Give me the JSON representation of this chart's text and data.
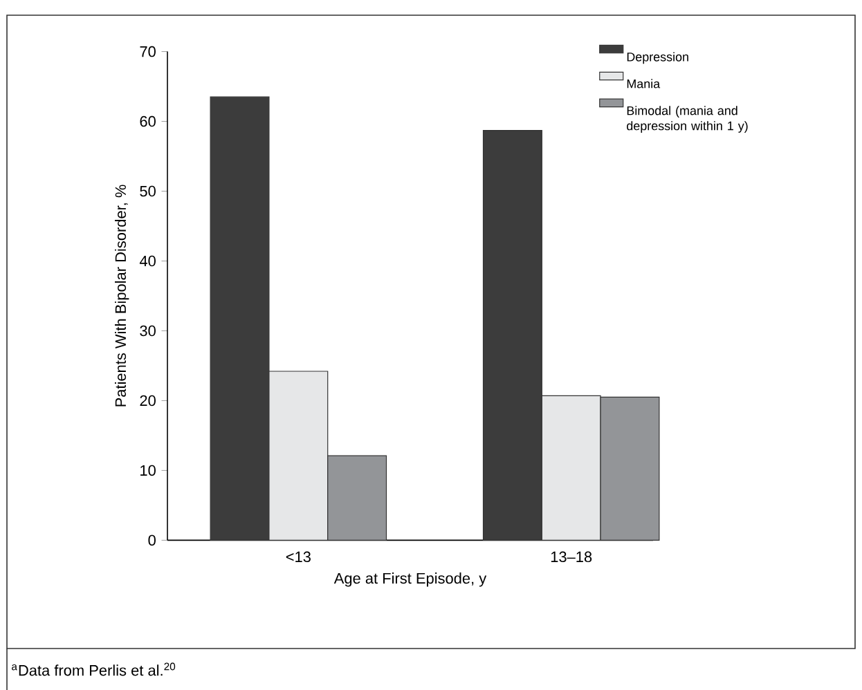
{
  "chart_data": {
    "type": "bar",
    "xlabel": "Age at First Episode, y",
    "ylabel": "Patients With Bipolar Disorder, %",
    "categories": [
      "<13",
      "13–18"
    ],
    "series": [
      {
        "name": "Depression",
        "color": "#3c3c3c",
        "values": [
          63.5,
          58.7
        ]
      },
      {
        "name": "Mania",
        "color": "#e6e7e8",
        "values": [
          24.2,
          20.7
        ]
      },
      {
        "name": "Bimodal (mania and depression within 1 y)",
        "color": "#939598",
        "values": [
          12.1,
          20.5
        ]
      }
    ],
    "ylim": [
      0,
      70
    ],
    "yticks": [
      0,
      10,
      20,
      30,
      40,
      50,
      60,
      70
    ],
    "grid": false,
    "legend": "top right",
    "annotations": [
      "$^{a}$Data from Perlis et al.$^{20}$"
    ]
  }
}
